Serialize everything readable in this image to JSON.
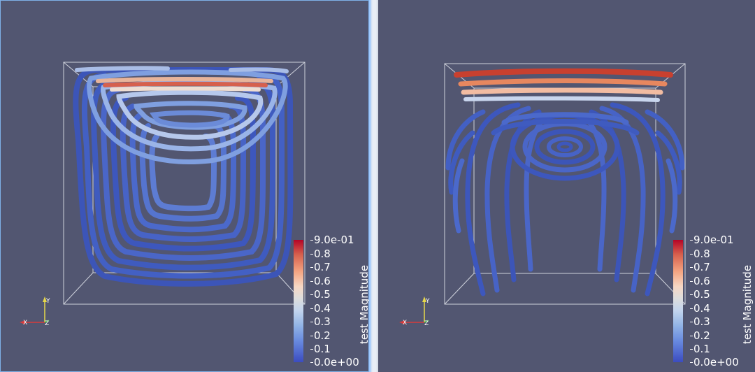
{
  "views": [
    {
      "id": "left",
      "colorbar": {
        "title": "test Magnitude",
        "ticks": [
          "9.0e-01",
          "0.8",
          "0.7",
          "0.6",
          "0.5",
          "0.4",
          "0.3",
          "0.2",
          "0.1",
          "0.0e+00"
        ]
      },
      "axes": {
        "x": "X",
        "y": "Y",
        "z": "Z"
      }
    },
    {
      "id": "right",
      "colorbar": {
        "title": "test Magnitude",
        "ticks": [
          "9.0e-01",
          "0.8",
          "0.7",
          "0.6",
          "0.5",
          "0.4",
          "0.3",
          "0.2",
          "0.1",
          "0.0e+00"
        ]
      },
      "axes": {
        "x": "X",
        "y": "Y",
        "z": "Z"
      }
    }
  ],
  "colors": {
    "background": "#525671",
    "low": "#3b4cc0",
    "mid": "#dddddd",
    "high": "#b40426",
    "active_border": "#9cc8ff"
  }
}
